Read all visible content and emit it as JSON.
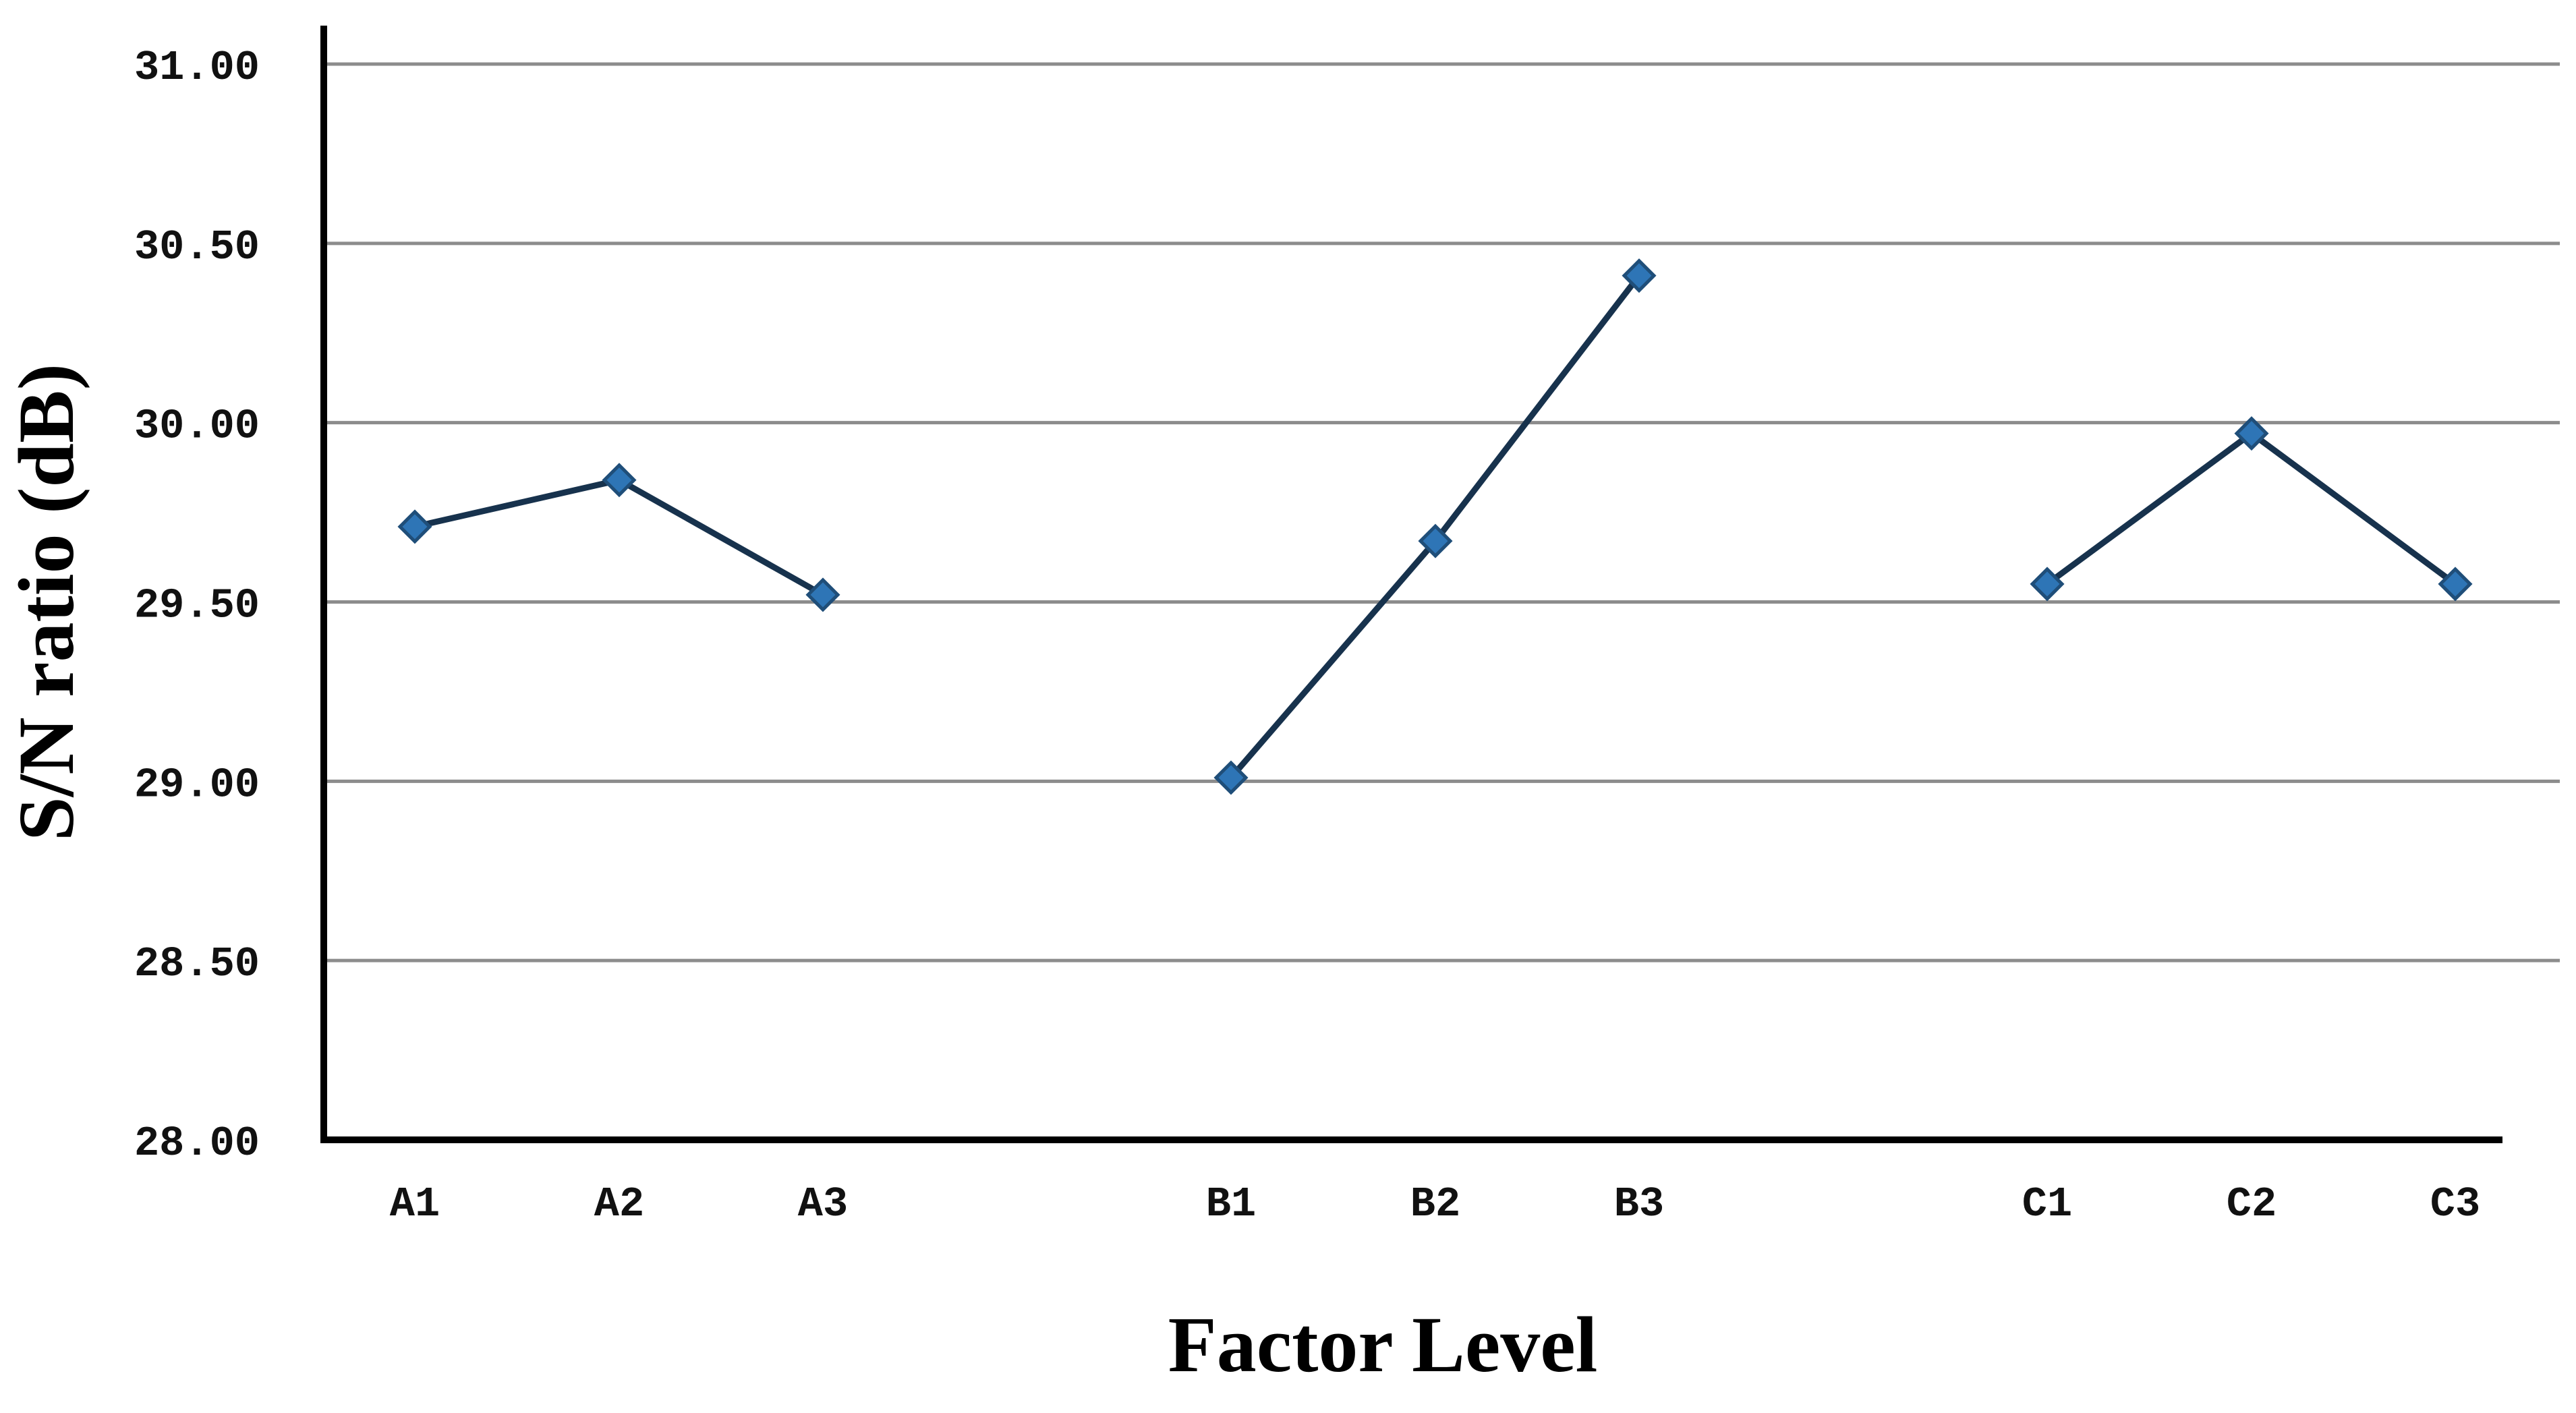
{
  "chart_data": {
    "type": "line",
    "title": "",
    "xlabel": "Factor Level",
    "ylabel": "S/N ratio (dB)",
    "ylim": [
      28.0,
      31.0
    ],
    "yticks": [
      "28.00",
      "28.50",
      "29.00",
      "29.50",
      "30.00",
      "30.50",
      "31.00"
    ],
    "grid": true,
    "legend": "none",
    "colors": {
      "line": "#17324d",
      "marker": "#2e75b6",
      "marker_edge": "#1f4e79",
      "grid": "#8c8c8c",
      "axis": "#000000"
    },
    "categories": [
      "A1",
      "A2",
      "A3",
      "B1",
      "B2",
      "B3",
      "C1",
      "C2",
      "C3"
    ],
    "groups": [
      {
        "factor": "A",
        "points": [
          {
            "label": "A1",
            "value": 29.71
          },
          {
            "label": "A2",
            "value": 29.84
          },
          {
            "label": "A3",
            "value": 29.52
          }
        ]
      },
      {
        "factor": "B",
        "points": [
          {
            "label": "B1",
            "value": 29.01
          },
          {
            "label": "B2",
            "value": 29.67
          },
          {
            "label": "B3",
            "value": 30.41
          }
        ]
      },
      {
        "factor": "C",
        "points": [
          {
            "label": "C1",
            "value": 29.55
          },
          {
            "label": "C2",
            "value": 29.97
          },
          {
            "label": "C3",
            "value": 29.55
          }
        ]
      }
    ]
  }
}
